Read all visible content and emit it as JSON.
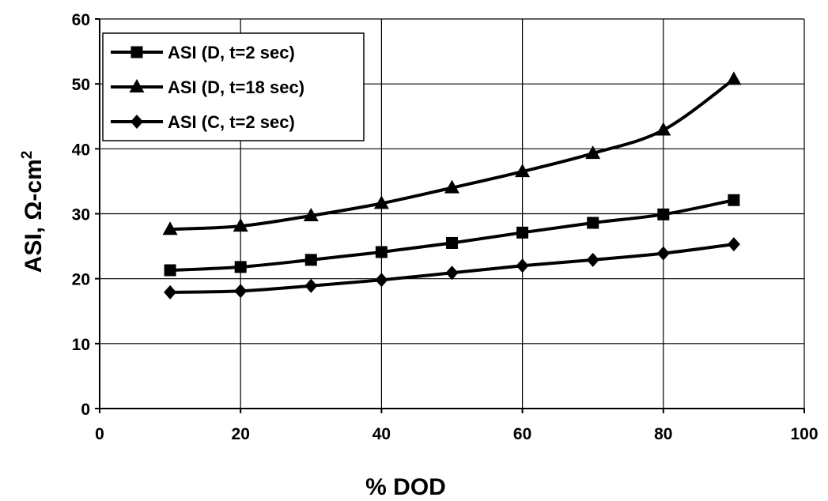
{
  "chart_data": {
    "type": "line",
    "title": "",
    "xlabel": "% DOD",
    "ylabel": "ASI, Ω-cm",
    "ylabel_superscript": "2",
    "xlim": [
      0,
      100
    ],
    "ylim": [
      0,
      60
    ],
    "x_ticks": [
      "0",
      "20",
      "40",
      "60",
      "80",
      "100"
    ],
    "y_ticks": [
      "0",
      "10",
      "20",
      "30",
      "40",
      "50",
      "60"
    ],
    "grid": "horizontal and vertical major gridlines",
    "legend_position": "top-left",
    "x": [
      10,
      20,
      30,
      40,
      50,
      60,
      70,
      80,
      90
    ],
    "series": [
      {
        "name": "ASI (D, t=2 sec)",
        "marker": "square",
        "values": [
          21.3,
          21.8,
          22.9,
          24.1,
          25.5,
          27.1,
          28.6,
          29.9,
          32.1
        ]
      },
      {
        "name": "ASI (D, t=18 sec)",
        "marker": "triangle",
        "values": [
          27.6,
          28.1,
          29.7,
          31.6,
          34.0,
          36.5,
          39.3,
          42.9,
          50.7
        ]
      },
      {
        "name": "ASI (C, t=2 sec)",
        "marker": "diamond",
        "values": [
          17.9,
          18.1,
          18.9,
          19.8,
          20.9,
          22.0,
          22.9,
          23.9,
          25.3
        ]
      }
    ]
  }
}
